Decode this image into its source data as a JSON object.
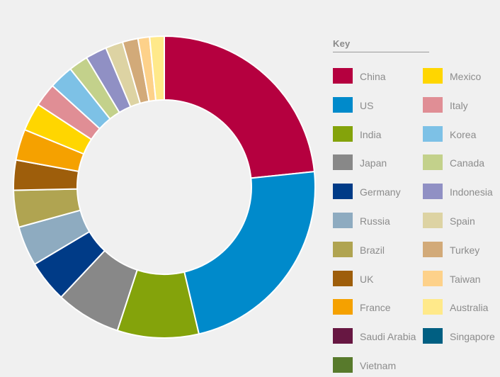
{
  "chart_data": {
    "type": "pie",
    "title": "",
    "legend_title": "Key",
    "legend_position": "right",
    "categories": [
      "China",
      "US",
      "India",
      "Japan",
      "Germany",
      "Russia",
      "Brazil",
      "UK",
      "France",
      "Saudi Arabia",
      "Vietnam",
      "Mexico",
      "Italy",
      "Korea",
      "Canada",
      "Indonesia",
      "Spain",
      "Turkey",
      "Taiwan",
      "Australia",
      "Singapore"
    ],
    "values": [
      22.5,
      22.1,
      8.4,
      6.7,
      4.3,
      4.1,
      3.8,
      3.1,
      3.2,
      0,
      0,
      2.9,
      2.4,
      2.5,
      2.0,
      2.2,
      1.8,
      1.6,
      1.2,
      1.5,
      0
    ],
    "colors": [
      "#b5003f",
      "#008acb",
      "#84a30b",
      "#888888",
      "#003b87",
      "#8eabc0",
      "#b0a451",
      "#9e5e0b",
      "#f5a100",
      "#671742",
      "#587a2c",
      "#ffd600",
      "#e08e95",
      "#7dc1e6",
      "#c3d18b",
      "#9090c4",
      "#ddd3a3",
      "#d2aa79",
      "#fdd18a",
      "#ffe98a",
      "#005f82"
    ]
  }
}
